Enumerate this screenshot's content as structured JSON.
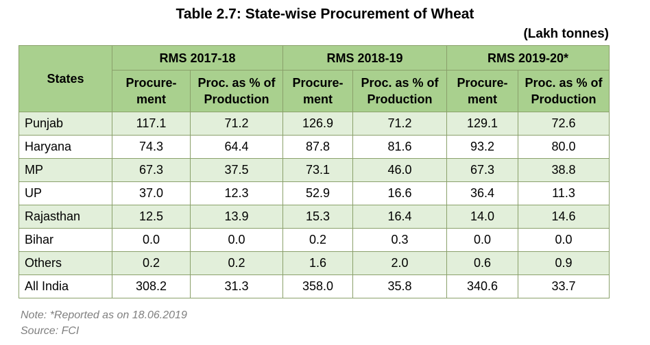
{
  "title": "Table 2.7: State-wise Procurement of Wheat",
  "unit": "(Lakh tonnes)",
  "colors": {
    "header_fill": "#a9d08e",
    "row_shade": "#e2efda",
    "border": "#8aa06a",
    "note_text": "#7f7f7f"
  },
  "table": {
    "states_header": "States",
    "groups": [
      "RMS 2017-18",
      "RMS 2018-19",
      "RMS 2019-20*"
    ],
    "subheaders": {
      "procurement": "Procure-\nment",
      "percent": "Proc. as % of\nProduction"
    },
    "rows": [
      {
        "state": "Punjab",
        "values": [
          "117.1",
          "71.2",
          "126.9",
          "71.2",
          "129.1",
          "72.6"
        ]
      },
      {
        "state": "Haryana",
        "values": [
          "74.3",
          "64.4",
          "87.8",
          "81.6",
          "93.2",
          "80.0"
        ]
      },
      {
        "state": "MP",
        "values": [
          "67.3",
          "37.5",
          "73.1",
          "46.0",
          "67.3",
          "38.8"
        ]
      },
      {
        "state": "UP",
        "values": [
          "37.0",
          "12.3",
          "52.9",
          "16.6",
          "36.4",
          "11.3"
        ]
      },
      {
        "state": "Rajasthan",
        "values": [
          "12.5",
          "13.9",
          "15.3",
          "16.4",
          "14.0",
          "14.6"
        ]
      },
      {
        "state": "Bihar",
        "values": [
          "0.0",
          "0.0",
          "0.2",
          "0.3",
          "0.0",
          "0.0"
        ]
      },
      {
        "state": "Others",
        "values": [
          "0.2",
          "0.2",
          "1.6",
          "2.0",
          "0.6",
          "0.9"
        ]
      },
      {
        "state": "All India",
        "values": [
          "308.2",
          "31.3",
          "358.0",
          "35.8",
          "340.6",
          "33.7"
        ]
      }
    ]
  },
  "notes": {
    "note": "Note: *Reported as on 18.06.2019",
    "source": "Source: FCI"
  }
}
